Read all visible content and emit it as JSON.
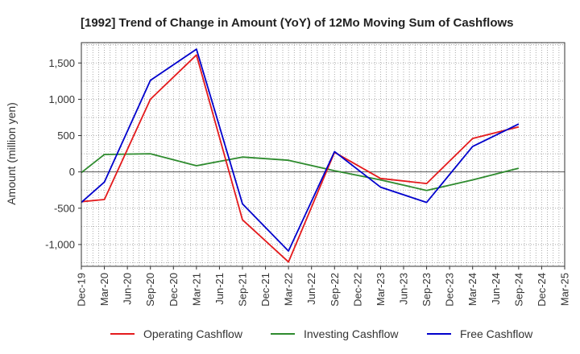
{
  "chart_data": {
    "type": "line",
    "title": "[1992]  Trend of Change in Amount (YoY) of 12Mo Moving Sum of Cashflows",
    "xlabel": "",
    "ylabel": "Amount (million yen)",
    "ylim": [
      -1300,
      1780
    ],
    "yticks": [
      -1000,
      -500,
      0,
      500,
      1000,
      1500
    ],
    "ytick_labels": [
      "-1,000",
      "-500",
      "0",
      "500",
      "1,000",
      "1,500"
    ],
    "categories": [
      "Dec-19",
      "Mar-20",
      "Jun-20",
      "Sep-20",
      "Dec-20",
      "Mar-21",
      "Jun-21",
      "Sep-21",
      "Dec-21",
      "Mar-22",
      "Jun-22",
      "Sep-22",
      "Dec-22",
      "Mar-23",
      "Jun-23",
      "Sep-23",
      "Dec-23",
      "Mar-24",
      "Jun-24",
      "Sep-24",
      "Dec-24",
      "Mar-25"
    ],
    "grid": true,
    "legend_position": "bottom",
    "series": [
      {
        "name": "Operating Cashflow",
        "color": "#e41a1c",
        "x": [
          "Dec-19",
          "Mar-20",
          "Sep-20",
          "Mar-21",
          "Sep-21",
          "Mar-22",
          "Sep-22",
          "Mar-23",
          "Sep-23",
          "Mar-24",
          "Sep-24"
        ],
        "values": [
          -410,
          -380,
          1000,
          1610,
          -660,
          -1240,
          270,
          -90,
          -160,
          460,
          620
        ]
      },
      {
        "name": "Investing Cashflow",
        "color": "#2e8b2e",
        "x": [
          "Dec-19",
          "Mar-20",
          "Sep-20",
          "Mar-21",
          "Sep-21",
          "Mar-22",
          "Sep-22",
          "Mar-23",
          "Sep-23",
          "Mar-24",
          "Sep-24"
        ],
        "values": [
          -10,
          240,
          250,
          85,
          205,
          160,
          15,
          -110,
          -255,
          -110,
          50
        ]
      },
      {
        "name": "Free Cashflow",
        "color": "#0000cc",
        "x": [
          "Dec-19",
          "Mar-20",
          "Sep-20",
          "Mar-21",
          "Sep-21",
          "Mar-22",
          "Sep-22",
          "Mar-23",
          "Sep-23",
          "Mar-24",
          "Sep-24"
        ],
        "values": [
          -420,
          -140,
          1260,
          1690,
          -440,
          -1090,
          280,
          -210,
          -420,
          350,
          660
        ]
      }
    ]
  }
}
